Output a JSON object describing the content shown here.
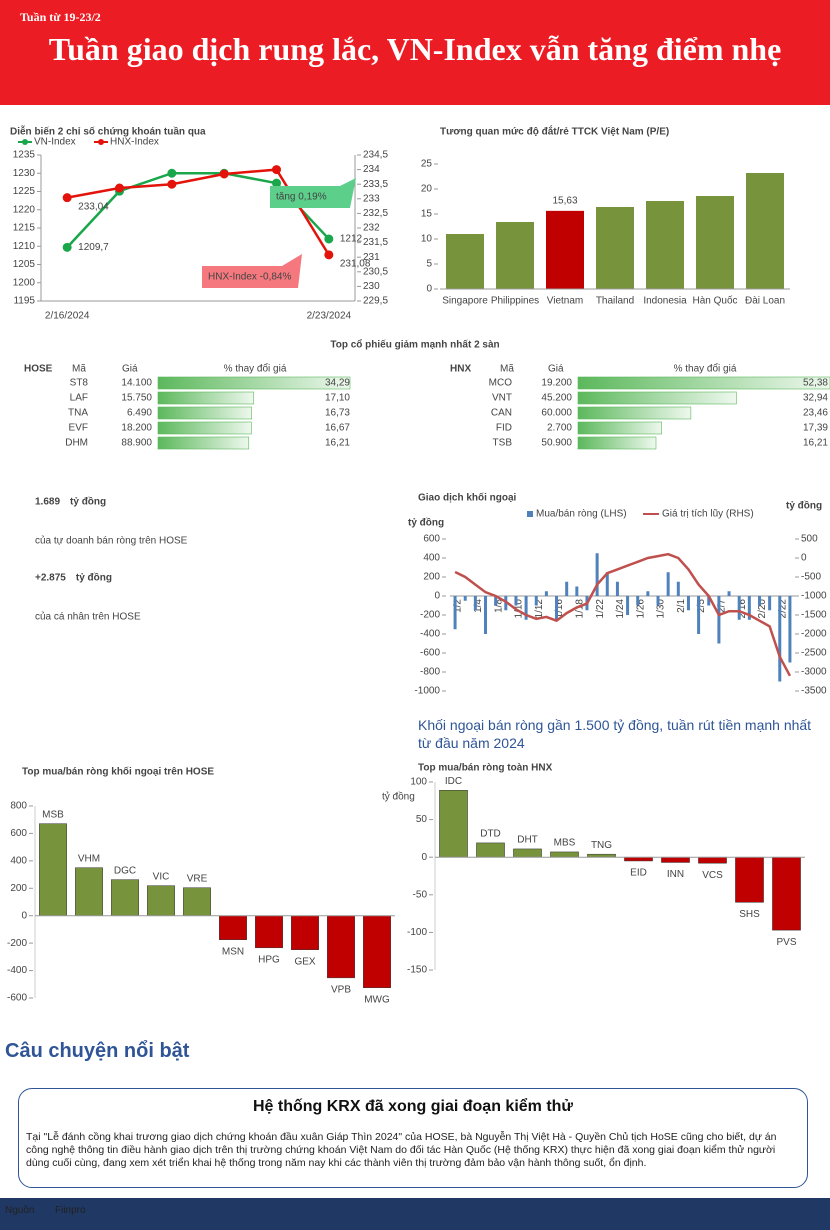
{
  "header": {
    "kicker": "Tuần từ 19-23/2",
    "title": "Tuần giao dịch rung lắc, VN-Index vẫn tăng điểm nhẹ"
  },
  "chart_data": [
    {
      "type": "line",
      "title": "Diễn biến 2 chỉ số chứng khoán tuần qua",
      "categories": [
        "2/16/2024",
        null,
        null,
        null,
        null,
        "2/23/2024"
      ],
      "series": [
        {
          "name": "VN-Index",
          "color": "#1aa64b",
          "values": [
            1209.7,
            1225.1,
            1230,
            1230,
            1227.3,
            1212
          ],
          "value_labels": [
            "1209,7",
            null,
            null,
            null,
            null,
            "1212"
          ]
        },
        {
          "name": "HNX-Index",
          "color": "#e3120b",
          "axis": "y2",
          "values": [
            233.04,
            233.37,
            233.5,
            233.85,
            234.0,
            231.08
          ],
          "value_labels": [
            "233,04",
            null,
            null,
            null,
            null,
            "231,08"
          ]
        }
      ],
      "ylim": [
        1195,
        1235
      ],
      "yticks": [
        1195,
        1200,
        1205,
        1210,
        1215,
        1220,
        1225,
        1230,
        1235
      ],
      "y2lim": [
        229.5,
        234.5
      ],
      "y2ticks": [
        {
          "value": 229.5,
          "label": "229,5"
        },
        230,
        {
          "value": 230.5,
          "label": "230,5"
        },
        231,
        {
          "value": 231.5,
          "label": "231,5"
        },
        232,
        {
          "value": 232.5,
          "label": "232,5"
        },
        233,
        {
          "value": 233.5,
          "label": "233,5"
        },
        234,
        {
          "value": 234.5,
          "label": "234,5"
        }
      ],
      "annotations": [
        {
          "text": "tăng 0,19%",
          "color": "#5ccf8a"
        },
        {
          "text": "HNX-Index -0,84%",
          "color": "#f4787e"
        }
      ]
    },
    {
      "type": "bar",
      "title": "Tương quan mức độ đắt/rẻ TTCK Việt Nam (P/E)",
      "categories": [
        "Singapore",
        "Philippines",
        "Vietnam",
        "Thailand",
        "Indonesia",
        "Hàn Quốc",
        "Đài Loan"
      ],
      "values": [
        11,
        13.4,
        15.63,
        16.4,
        17.6,
        18.6,
        23.2
      ],
      "value_labels": [
        null,
        null,
        "15,63",
        null,
        null,
        null,
        null
      ],
      "colors": [
        "#77933c",
        "#77933c",
        "#c00000",
        "#77933c",
        "#77933c",
        "#77933c",
        "#77933c"
      ],
      "ylim": [
        0,
        25
      ],
      "yticks": [
        0,
        5,
        10,
        15,
        20,
        25
      ]
    },
    {
      "type": "combo",
      "title": "Giao dịch khối ngoại",
      "y_label": "tỷ đồng",
      "y2_label": "tỷ đồng",
      "caption": "Khối ngoại bán ròng gần 1.500 tỷ đồng, tuần rút tiền mạnh nhất từ đầu năm 2024",
      "categories": [
        "1/2",
        null,
        "1/4",
        null,
        "1/8",
        null,
        "1/10",
        null,
        "1/12",
        null,
        "1/16",
        null,
        "1/18",
        null,
        "1/22",
        null,
        "1/24",
        null,
        "1/26",
        null,
        "1/30",
        null,
        "2/1",
        null,
        "2/5",
        null,
        "2/7",
        null,
        "2/16",
        null,
        "2/20",
        null,
        "2/22",
        null
      ],
      "series": [
        {
          "name": "Mua/bán ròng (LHS)",
          "color": "#4f81bd",
          "kind": "bar",
          "values": [
            -350,
            -50,
            -150,
            -400,
            -100,
            -150,
            -100,
            -250,
            -100,
            50,
            -250,
            150,
            100,
            -150,
            450,
            250,
            150,
            -200,
            -100,
            50,
            -100,
            250,
            150,
            -150,
            -400,
            -100,
            -500,
            50,
            -250,
            -250,
            -100,
            -150,
            -900,
            -700
          ]
        },
        {
          "name": "Giá trị tích lũy (RHS)",
          "color": "#c0504d",
          "kind": "line",
          "axis": "y2",
          "values": [
            -370,
            -500,
            -700,
            -900,
            -1000,
            -1150,
            -1350,
            -1500,
            -1600,
            -1550,
            -1650,
            -1450,
            -1300,
            -1200,
            -700,
            -400,
            -300,
            -200,
            -100,
            0,
            50,
            100,
            0,
            -300,
            -700,
            -1000,
            -1500,
            -1400,
            -1400,
            -1500,
            -1650,
            -1800,
            -2600,
            -3100
          ]
        }
      ],
      "ylim": [
        -1000,
        600
      ],
      "yticks": [
        -1000,
        -800,
        -600,
        -400,
        -200,
        0,
        200,
        400,
        600
      ],
      "y2lim": [
        -3500,
        500
      ],
      "y2ticks": [
        -3500,
        -3000,
        -2500,
        -2000,
        -1500,
        -1000,
        -500,
        0,
        500
      ]
    },
    {
      "type": "bar",
      "title": "Top mua/bán ròng khối ngoại trên HOSE",
      "categories": [
        "MSB",
        "VHM",
        "DGC",
        "VIC",
        "VRE",
        "MSN",
        "HPG",
        "GEX",
        "VPB",
        "MWG"
      ],
      "values": [
        671,
        350,
        263,
        219,
        204,
        -175,
        -234,
        -248,
        -453,
        -525
      ],
      "color": "#77933c",
      "negative_color": "#c00000",
      "ylim": [
        -600,
        800
      ],
      "yticks": [
        -600,
        -400,
        -200,
        0,
        200,
        400,
        600,
        800
      ]
    },
    {
      "type": "bar",
      "title": "Top mua/bán ròng toàn HNX",
      "y_label": "tỷ đồng",
      "categories": [
        "IDC",
        "DTD",
        "DHT",
        "MBS",
        "TNG",
        "EID",
        "INN",
        "VCS",
        "SHS",
        "PVS"
      ],
      "values": [
        89,
        19,
        11,
        7,
        4,
        -5,
        -7,
        -8,
        -60,
        -97
      ],
      "color": "#77933c",
      "negative_color": "#c00000",
      "ylim": [
        -150,
        100
      ],
      "yticks": [
        -150,
        -100,
        -50,
        0,
        50,
        100
      ]
    }
  ],
  "tables": {
    "title": "Top cổ phiếu giảm mạnh nhất 2 sàn",
    "items": [
      {
        "exchange": "HOSE",
        "headers": [
          "Mã",
          "Giá",
          "% thay đổi giá"
        ],
        "codes": [
          "ST8",
          "LAF",
          "TNA",
          "EVF",
          "DHM"
        ],
        "prices": [
          "14.100",
          "15.750",
          "6.490",
          "18.200",
          "88.900"
        ],
        "values": [
          34.29,
          17.1,
          16.73,
          16.67,
          16.21
        ],
        "value_labels": [
          "34,29",
          "17,10",
          "16,73",
          "16,67",
          "16,21"
        ]
      },
      {
        "exchange": "HNX",
        "headers": [
          "Mã",
          "Giá",
          "% thay đổi giá"
        ],
        "codes": [
          "MCO",
          "VNT",
          "CAN",
          "FID",
          "TSB"
        ],
        "prices": [
          "19.200",
          "45.200",
          "60.000",
          "2.700",
          "50.900"
        ],
        "values": [
          52.38,
          32.94,
          23.46,
          17.39,
          16.21
        ],
        "value_labels": [
          "52,38",
          "32,94",
          "23,46",
          "17,39",
          "16,21"
        ]
      }
    ]
  },
  "highlights": [
    {
      "figure": "1.689",
      "unit": "tỷ đồng",
      "text": "của tự doanh bán ròng trên HOSE",
      "color": "#ff0000"
    },
    {
      "figure": "+2.875",
      "unit": "tỷ đồng",
      "text": "của cá nhân trên HOSE",
      "color": "#22b14c"
    }
  ],
  "story": {
    "heading": "Câu chuyện nổi bật",
    "title": "Hệ thống KRX đã xong giai đoạn kiểm thử",
    "body": "Tại \"Lễ đánh cồng khai trương giao dịch chứng khoán đầu xuân Giáp Thìn 2024\" của HOSE, bà Nguyễn Thị Việt Hà - Quyền Chủ tịch HoSE cũng cho biết, dự án công nghệ thông tin điều hành giao dịch trên thị trường chứng khoán Việt Nam do đối tác Hàn Quốc (Hệ thống KRX) thực hiện đã xong giai đoạn kiểm thử người dùng cuối cùng, đang xem xét triển khai hệ thống trong năm nay khi các thành viên thị trường đảm bảo vận hành thông suốt, ổn định."
  },
  "footer": {
    "source_label": "Nguồn",
    "source": "Fiinpro"
  }
}
